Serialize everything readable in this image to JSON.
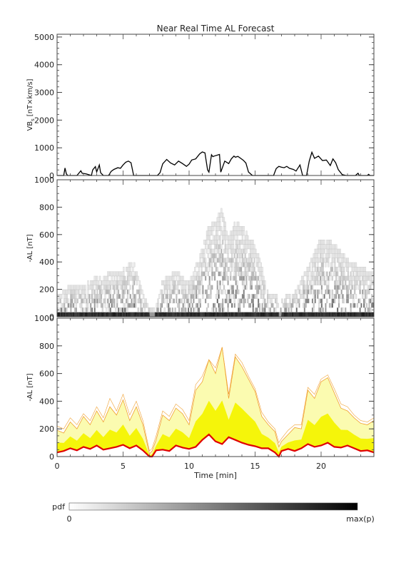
{
  "chart_data": [
    {
      "panel": "top",
      "type": "line",
      "title": "Near Real Time AL Forecast",
      "ylabel_main": "VB",
      "ylabel_sub": "s",
      "ylabel_units": "[nT×km/s]",
      "xlim": [
        0,
        24
      ],
      "ylim": [
        0,
        5100
      ],
      "yticks": [
        0,
        1000,
        2000,
        3000,
        4000,
        5000
      ],
      "ytick_labels": [
        "0",
        "1000",
        "2000",
        "3000",
        "4000",
        "5000"
      ],
      "line_color": "#000000",
      "series": [
        {
          "x": [
            0,
            0.5,
            0.6,
            0.7,
            0.8,
            1.5,
            1.8,
            1.9,
            2.2,
            2.6,
            2.7,
            2.9,
            3.0,
            3.2,
            3.3,
            3.5,
            3.9,
            4.1,
            4.3,
            4.6,
            4.8,
            5.0,
            5.2,
            5.4,
            5.6,
            5.8,
            6.2,
            6.6,
            7.4,
            7.6,
            7.8,
            8.0,
            8.3,
            8.6,
            8.9,
            9.2,
            9.5,
            9.8,
            10.0,
            10.2,
            10.5,
            10.8,
            11.0,
            11.2,
            11.4,
            11.5,
            11.7,
            11.8,
            11.9,
            12.3,
            12.4,
            12.7,
            13.0,
            13.2,
            13.4,
            13.5,
            13.7,
            13.9,
            14.1,
            14.3,
            14.5,
            14.8,
            14.9,
            15.0,
            15.2,
            15.5,
            15.8,
            16.1,
            16.4,
            16.6,
            16.8,
            17.0,
            17.2,
            17.4,
            17.6,
            17.9,
            18.1,
            18.4,
            18.6,
            18.9,
            19.1,
            19.3,
            19.5,
            19.8,
            20.1,
            20.4,
            20.7,
            20.9,
            21.1,
            21.3,
            21.6,
            21.9,
            22.2,
            22.6,
            22.8,
            22.9,
            23.1,
            23.5,
            23.6,
            23.7,
            24.0
          ],
          "y": [
            0,
            0,
            270,
            60,
            0,
            0,
            170,
            80,
            60,
            0,
            200,
            320,
            130,
            380,
            100,
            0,
            0,
            150,
            220,
            280,
            260,
            380,
            480,
            520,
            460,
            0,
            0,
            0,
            0,
            0,
            100,
            420,
            580,
            450,
            380,
            520,
            430,
            330,
            410,
            560,
            600,
            780,
            850,
            820,
            200,
            120,
            750,
            680,
            700,
            760,
            120,
            520,
            430,
            600,
            700,
            660,
            690,
            620,
            550,
            450,
            120,
            0,
            0,
            0,
            0,
            0,
            0,
            0,
            0,
            250,
            330,
            300,
            280,
            330,
            260,
            220,
            160,
            380,
            0,
            0,
            520,
            840,
            620,
            700,
            540,
            560,
            360,
            600,
            460,
            210,
            30,
            0,
            0,
            0,
            80,
            0,
            0,
            0,
            40,
            0,
            0
          ]
        }
      ]
    },
    {
      "panel": "middle",
      "type": "heatmap",
      "ylabel": "-AL [nT]",
      "xlim": [
        0,
        24
      ],
      "ylim": [
        0,
        1000
      ],
      "yticks": [
        0,
        200,
        400,
        600,
        800,
        1000
      ],
      "ytick_labels": [
        "0",
        "200",
        "400",
        "600",
        "800",
        "1000"
      ],
      "colorscale": "white to black, proportional to pdf",
      "bin_width_min": 0.1,
      "bin_height_nT": 33,
      "baseline_intensity": 0.9,
      "envelope_x": [
        0,
        1,
        2,
        3,
        4,
        5,
        5.8,
        6.2,
        7,
        7.4,
        8,
        9,
        10,
        11,
        11.5,
        12,
        12.5,
        13,
        13.5,
        14,
        15,
        15.5,
        16,
        17,
        18,
        19,
        20,
        21,
        22,
        23,
        24
      ],
      "envelope_y": [
        130,
        220,
        210,
        280,
        300,
        330,
        400,
        250,
        40,
        40,
        250,
        320,
        230,
        480,
        650,
        680,
        780,
        560,
        690,
        650,
        510,
        350,
        160,
        120,
        160,
        350,
        560,
        520,
        400,
        350,
        300
      ]
    },
    {
      "panel": "bottom",
      "type": "area",
      "ylabel": "-AL [nT]",
      "xlabel": "Time [min]",
      "xlim": [
        0,
        24
      ],
      "ylim": [
        0,
        1000
      ],
      "xticks": [
        0,
        5,
        10,
        15,
        20
      ],
      "xtick_labels": [
        "0",
        "5",
        "10",
        "15",
        "20"
      ],
      "yticks": [
        0,
        200,
        400,
        600,
        800,
        1000
      ],
      "ytick_labels": [
        "0",
        "200",
        "400",
        "600",
        "800",
        "1000"
      ],
      "fill_color": "#f5f50a",
      "outline_color": "#f0a030",
      "median_color": "#e00000",
      "x": [
        0,
        0.5,
        1,
        1.5,
        2,
        2.5,
        3,
        3.5,
        4,
        4.5,
        5,
        5.5,
        6,
        6.5,
        7,
        7.2,
        7.5,
        8,
        8.5,
        9,
        9.5,
        10,
        10.5,
        11,
        11.5,
        12,
        12.5,
        13,
        13.5,
        14,
        14.5,
        15,
        15.5,
        16,
        16.5,
        16.8,
        17,
        17.5,
        18,
        18.5,
        19,
        19.5,
        20,
        20.5,
        21,
        21.5,
        22,
        22.5,
        23,
        23.5,
        24
      ],
      "median": [
        30,
        40,
        60,
        45,
        70,
        55,
        80,
        50,
        60,
        70,
        85,
        60,
        80,
        45,
        0,
        0,
        45,
        50,
        40,
        80,
        65,
        55,
        70,
        120,
        160,
        110,
        90,
        140,
        120,
        100,
        85,
        75,
        60,
        60,
        30,
        0,
        40,
        55,
        40,
        60,
        90,
        70,
        80,
        100,
        70,
        65,
        80,
        60,
        40,
        45,
        30
      ],
      "upper": [
        190,
        170,
        250,
        200,
        290,
        230,
        330,
        250,
        360,
        300,
        410,
        260,
        360,
        230,
        20,
        40,
        120,
        300,
        260,
        350,
        310,
        230,
        480,
        540,
        700,
        600,
        790,
        420,
        720,
        650,
        560,
        470,
        290,
        230,
        180,
        70,
        110,
        160,
        210,
        200,
        480,
        420,
        540,
        570,
        460,
        350,
        330,
        280,
        240,
        230,
        260
      ],
      "upper_outline_envelope": [
        220,
        200,
        280,
        230,
        310,
        260,
        360,
        280,
        420,
        330,
        450,
        300,
        400,
        260,
        40,
        60,
        150,
        330,
        290,
        380,
        340,
        260,
        520,
        580,
        700,
        640,
        790,
        450,
        740,
        680,
        580,
        490,
        320,
        250,
        200,
        100,
        130,
        190,
        230,
        230,
        500,
        450,
        560,
        590,
        490,
        380,
        360,
        300,
        260,
        250,
        280
      ]
    },
    {
      "panel": "colorbar",
      "type": "heatmap",
      "label": "pdf",
      "min_label": "0",
      "max_label": "max(p)",
      "colorscale": [
        "#ffffff",
        "#000000"
      ]
    }
  ],
  "colors": {
    "axis": "#444444",
    "background": "#ffffff"
  }
}
